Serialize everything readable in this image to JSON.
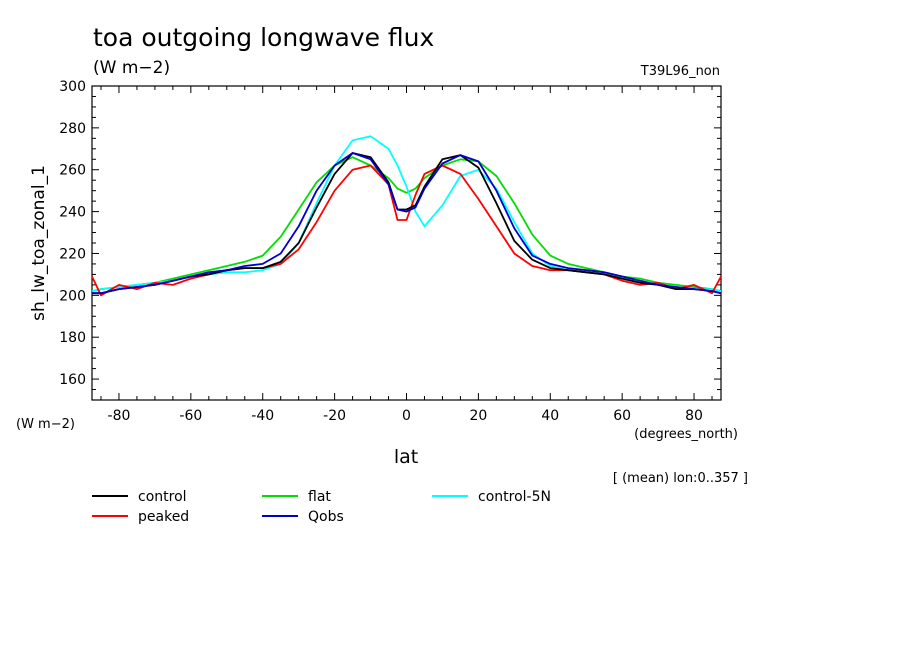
{
  "chart_data": {
    "type": "line",
    "title": "toa outgoing longwave flux",
    "subtitle": "(W m−2)",
    "run_label": "T39L96_non",
    "ylabel": "sh_lw_toa_zonal_1",
    "y_units": "(W m−2)",
    "xlabel": "lat",
    "x_units": "(degrees_north)",
    "mean_note": "[ (mean) lon:0..357 ]",
    "xlim": [
      -87.5,
      87.5
    ],
    "ylim": [
      150,
      300
    ],
    "xticks": [
      -80,
      -60,
      -40,
      -20,
      0,
      20,
      40,
      60,
      80
    ],
    "yticks": [
      160,
      180,
      200,
      220,
      240,
      260,
      280,
      300
    ],
    "x": [
      -87.5,
      -85,
      -80,
      -75,
      -70,
      -65,
      -60,
      -55,
      -50,
      -45,
      -40,
      -35,
      -30,
      -25,
      -20,
      -15,
      -10,
      -5,
      -2.5,
      0,
      2.5,
      5,
      10,
      15,
      20,
      25,
      30,
      35,
      40,
      45,
      50,
      55,
      60,
      65,
      70,
      75,
      80,
      85,
      87.5
    ],
    "series": [
      {
        "name": "control",
        "color": "#000000",
        "values": [
          201,
          201,
          203,
          204,
          205,
          207,
          209,
          210,
          212,
          213,
          213,
          216,
          225,
          242,
          258,
          268,
          266,
          254,
          241,
          241,
          243,
          252,
          265,
          267,
          261,
          244,
          226,
          217,
          213,
          212,
          211,
          210,
          208,
          206,
          205,
          203,
          203,
          202,
          201
        ]
      },
      {
        "name": "peaked",
        "color": "#ff0000",
        "values": [
          209,
          200,
          205,
          203,
          206,
          205,
          208,
          210,
          212,
          213,
          213,
          215,
          222,
          235,
          250,
          260,
          262,
          253,
          236,
          236,
          248,
          258,
          262,
          258,
          246,
          233,
          220,
          214,
          212,
          212,
          211,
          210,
          207,
          205,
          206,
          203,
          205,
          201,
          209
        ]
      },
      {
        "name": "flat",
        "color": "#00dd00",
        "values": [
          202,
          203,
          204,
          205,
          206,
          208,
          210,
          212,
          214,
          216,
          219,
          228,
          241,
          254,
          262,
          266,
          262,
          256,
          251,
          249,
          251,
          256,
          262,
          265,
          264,
          257,
          244,
          229,
          219,
          215,
          213,
          211,
          209,
          208,
          206,
          205,
          204,
          203,
          202
        ]
      },
      {
        "name": "Qobs",
        "color": "#0000cc",
        "values": [
          201,
          201,
          203,
          204,
          205,
          207,
          209,
          211,
          212,
          214,
          215,
          220,
          233,
          250,
          262,
          268,
          265,
          253,
          241,
          240,
          242,
          251,
          263,
          267,
          264,
          250,
          232,
          219,
          215,
          213,
          212,
          211,
          209,
          207,
          205,
          204,
          203,
          202,
          201
        ]
      },
      {
        "name": "control-5N",
        "color": "#00ffff",
        "values": [
          202,
          203,
          204,
          205,
          206,
          207,
          209,
          210,
          211,
          211,
          212,
          215,
          225,
          244,
          262,
          274,
          276,
          270,
          262,
          252,
          240,
          233,
          243,
          257,
          260,
          251,
          235,
          220,
          214,
          212,
          211,
          210,
          208,
          207,
          205,
          204,
          203,
          203,
          202
        ]
      }
    ],
    "legend_position": "bottom-left",
    "grid": false
  }
}
